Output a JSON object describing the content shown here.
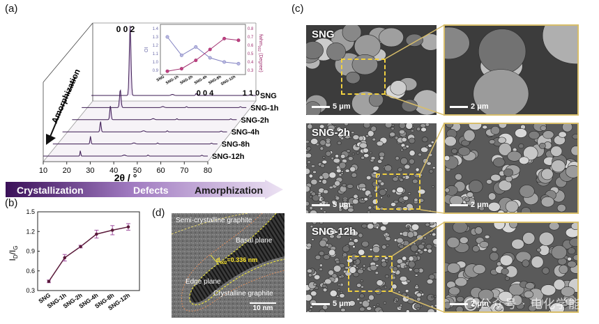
{
  "panels": {
    "a": "(a)",
    "b": "(b)",
    "c": "(c)",
    "d": "(d)"
  },
  "panel_a": {
    "series": [
      "SNG",
      "SNG-1h",
      "SNG-2h",
      "SNG-4h",
      "SNG-8h",
      "SNG-12h"
    ],
    "peak_labels": {
      "p002": "0 0 2",
      "p004": "0 0 4",
      "p110": "1 1 0"
    },
    "x_ticks": [
      "10",
      "20",
      "30",
      "40",
      "50",
      "60",
      "70",
      "80"
    ],
    "x_axis_label": "2θ / °",
    "depth_arrow_label": "Amorphization",
    "bottom_arrow": {
      "left": "Crystallization",
      "middle": "Defects",
      "right": "Amorphization"
    },
    "accent_color": "#4a1a6b"
  },
  "chart_data": [
    {
      "type": "line",
      "panel": "a-inset",
      "categories": [
        "SNG",
        "SNG-1h",
        "SNG-2h",
        "SNG-4h",
        "SNG-8h",
        "SNG-12h"
      ],
      "series": [
        {
          "name": "OI",
          "values": [
            1.3,
            1.08,
            1.18,
            1.05,
            1.0,
            0.98
          ],
          "color": "#8080c0"
        },
        {
          "name": "fwhm002",
          "values": [
            0.29,
            0.32,
            0.42,
            0.55,
            0.68,
            0.66
          ],
          "color": "#a03070"
        }
      ],
      "y_left": {
        "label": "OI",
        "ticks": [
          "0.9",
          "1.0",
          "1.1",
          "1.2",
          "1.3",
          "1.4"
        ],
        "lim": [
          0.9,
          1.4
        ]
      },
      "y_right": {
        "label": "fwhm",
        "label_sub": "002",
        "label_tail": " (Degree)",
        "ticks": [
          "0.3",
          "0.4",
          "0.5",
          "0.6",
          "0.7",
          "0.8"
        ],
        "lim": [
          0.3,
          0.8
        ]
      }
    },
    {
      "type": "line",
      "panel": "b",
      "categories": [
        "SNG",
        "SNG-1h",
        "SNG-2h",
        "SNG-4h",
        "SNG-8h",
        "SNG-12h"
      ],
      "values": [
        0.44,
        0.8,
        0.97,
        1.16,
        1.22,
        1.27
      ],
      "errors": [
        0.02,
        0.05,
        0.02,
        0.06,
        0.07,
        0.05
      ],
      "ylabel": "I",
      "ylabel_sub1": "D",
      "ylabel_mid": "/I",
      "ylabel_sub2": "G",
      "y_ticks": [
        "0.3",
        "0.6",
        "0.9",
        "1.2",
        "1.5"
      ],
      "ylim": [
        0.3,
        1.5
      ],
      "color": "#5a1a3a"
    }
  ],
  "panel_d": {
    "semi": "Semi-crystalline graphite",
    "basal": "Basal plane",
    "d_label": "d",
    "d_sub": "002",
    "d_value": "=0.336 nm",
    "edge": "Edge plane",
    "crystalline": "Crystalline graphite",
    "scale": "10 nm"
  },
  "panel_c": {
    "rows": [
      {
        "label": "SNG",
        "scale_left": "5 μm",
        "scale_right": "2 μm"
      },
      {
        "label": "SNG-2h",
        "scale_left": "5 μm",
        "scale_right": "2 μm"
      },
      {
        "label": "SNG-12h",
        "scale_left": "5 μm",
        "scale_right": "2 μm"
      }
    ]
  },
  "watermark": "公众号 · 电化学能源"
}
